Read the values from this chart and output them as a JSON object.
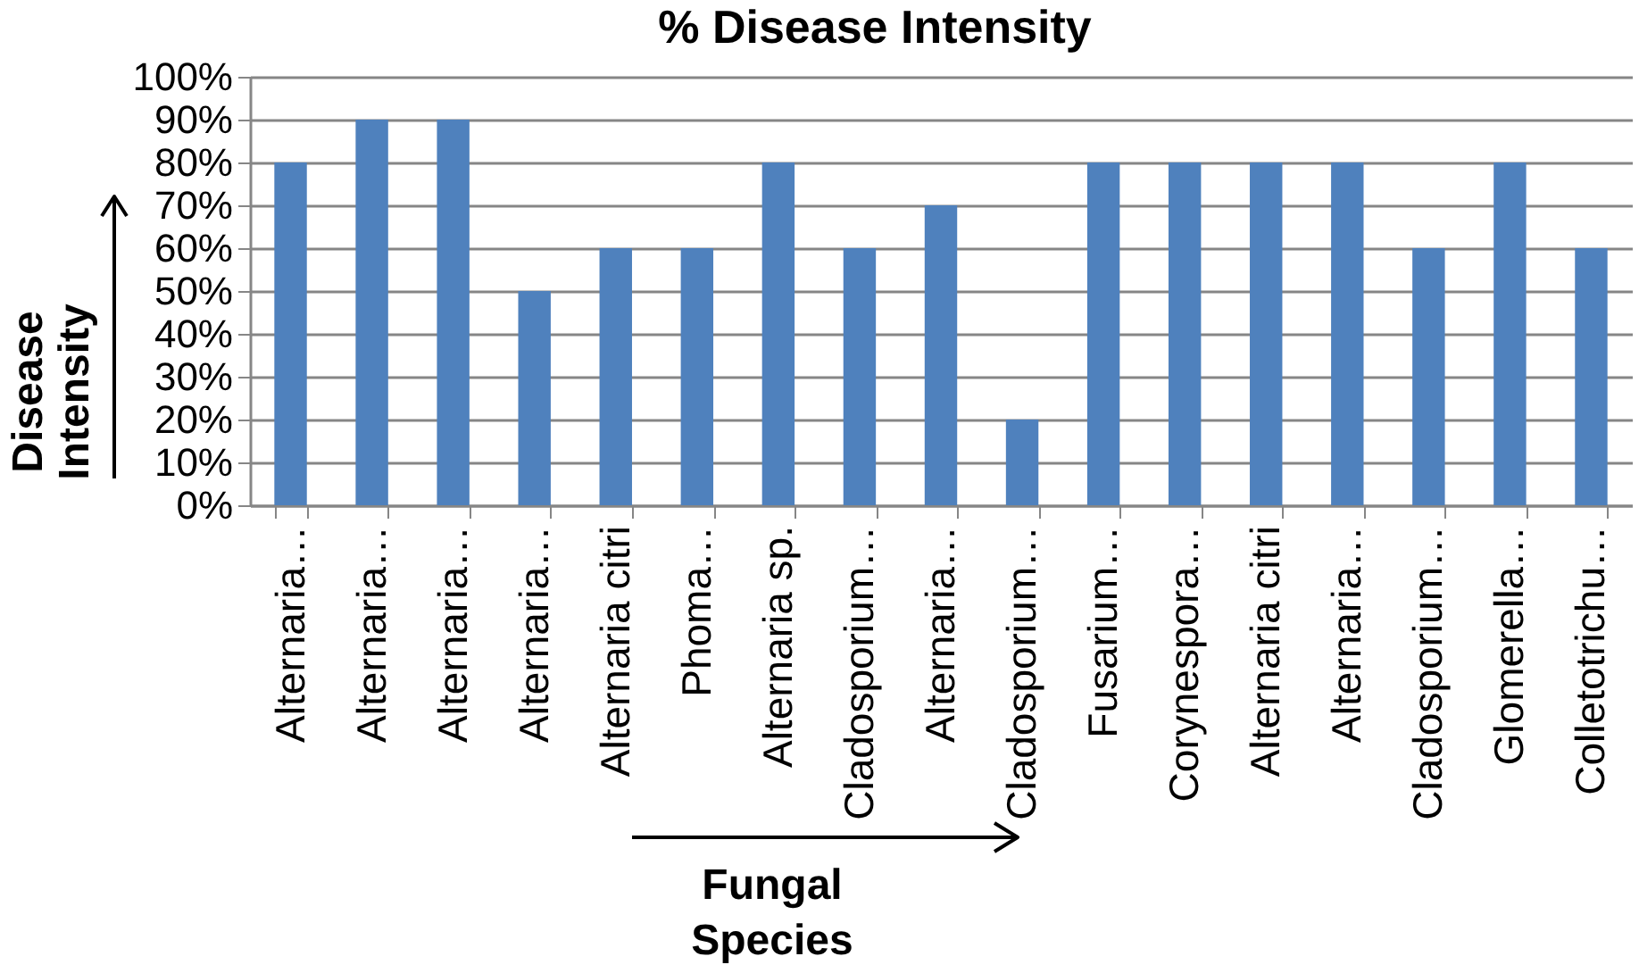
{
  "chart_data": {
    "type": "bar",
    "title": "% Disease Intensity",
    "xlabel": "Fungal Species",
    "ylabel": "Disease Intensity",
    "categories": [
      "Alternaria…",
      "Alternaria…",
      "Alternaria…",
      "Alternaria…",
      "Alternaria citri",
      "Phoma…",
      "Alternaria sp.",
      "Cladosporium…",
      "Alternaria…",
      "Cladosporium…",
      "Fusarium…",
      "Corynespora…",
      "Alternaria citri",
      "Alternaria…",
      "Cladosporium…",
      "Glomerella…",
      "Colletotrichu…"
    ],
    "values": [
      80,
      90,
      90,
      50,
      60,
      60,
      80,
      60,
      70,
      20,
      80,
      80,
      80,
      80,
      60,
      80,
      60
    ],
    "color": "#4f81bd",
    "ylim": [
      0,
      100
    ],
    "yticks": [
      {
        "value": 0,
        "label": "0%"
      },
      {
        "value": 10,
        "label": "10%"
      },
      {
        "value": 20,
        "label": "20%"
      },
      {
        "value": 30,
        "label": "30%"
      },
      {
        "value": 40,
        "label": "40%"
      },
      {
        "value": 50,
        "label": "50%"
      },
      {
        "value": 60,
        "label": "60%"
      },
      {
        "value": 70,
        "label": "70%"
      },
      {
        "value": 80,
        "label": "80%"
      },
      {
        "value": 90,
        "label": "90%"
      },
      {
        "value": 100,
        "label": "100%"
      }
    ],
    "grid": "y"
  }
}
